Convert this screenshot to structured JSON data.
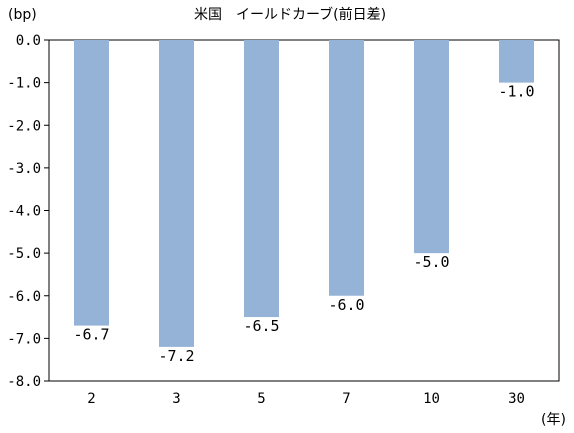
{
  "chart_data": {
    "type": "bar",
    "title": "米国　イールドカーブ(前日差)",
    "y_unit_label": "(bp)",
    "x_unit_label": "(年)",
    "categories": [
      "2",
      "3",
      "5",
      "7",
      "10",
      "30"
    ],
    "values": [
      -6.7,
      -7.2,
      -6.5,
      -6.0,
      -5.0,
      -1.0
    ],
    "data_labels": [
      "-6.7",
      "-7.2",
      "-6.5",
      "-6.0",
      "-5.0",
      "-1.0"
    ],
    "ylim": [
      -8.0,
      0.0
    ],
    "y_ticks": [
      0.0,
      -1.0,
      -2.0,
      -3.0,
      -4.0,
      -5.0,
      -6.0,
      -7.0,
      -8.0
    ],
    "y_tick_labels": [
      "0.0",
      "-1.0",
      "-2.0",
      "-3.0",
      "-4.0",
      "-5.0",
      "-6.0",
      "-7.0",
      "-8.0"
    ],
    "grid": false,
    "legend": false,
    "colors": {
      "bar": "#95b3d7",
      "axis": "#000000",
      "frame": "#000000",
      "text": "#000000"
    }
  }
}
